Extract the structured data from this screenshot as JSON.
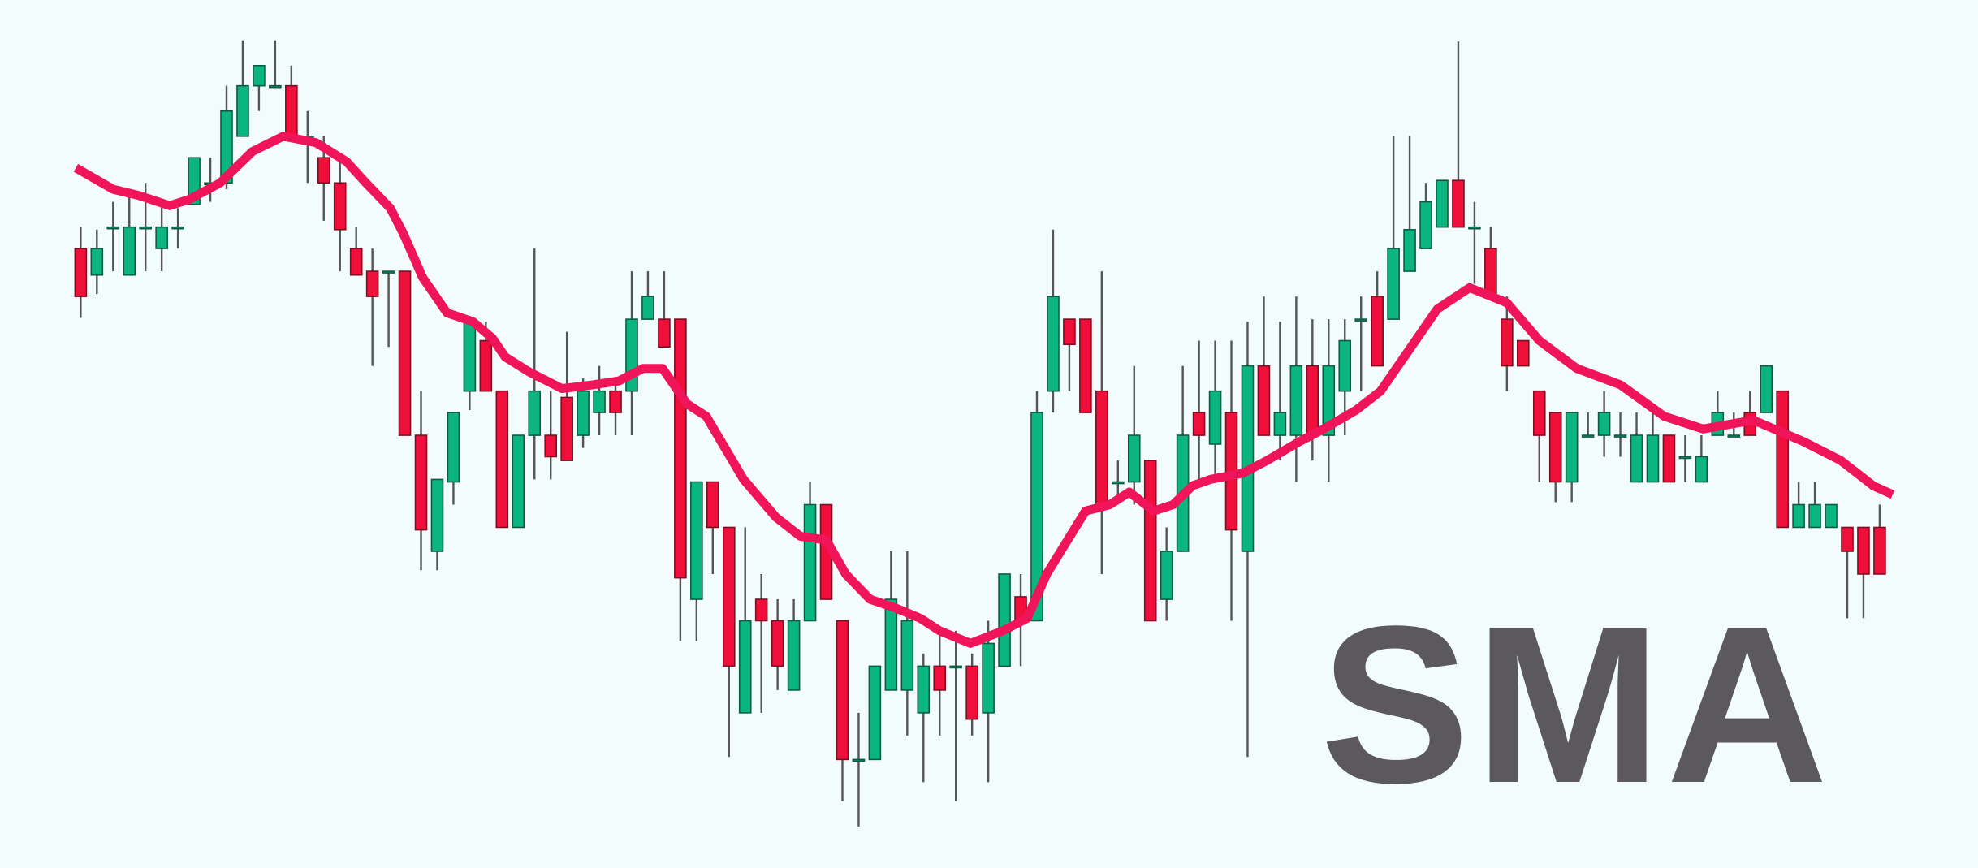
{
  "chart_data": {
    "type": "candlestick",
    "title": "SMA",
    "up_color": "#0bb57f",
    "up_border": "#0e5c40",
    "down_color": "#ef0f3a",
    "down_border": "#7a0f22",
    "wick_color": "#555555",
    "xlim": [
      0,
      114
    ],
    "ylim": [
      0,
      688
    ],
    "open": [
      491,
      470,
      508,
      470,
      508,
      491,
      508,
      526,
      543,
      543,
      580,
      620,
      620,
      620,
      580,
      563,
      543,
      491,
      473,
      473,
      473,
      343,
      251,
      306,
      378,
      418,
      378,
      270,
      343,
      343,
      373,
      343,
      361,
      378,
      378,
      435,
      435,
      435,
      213,
      306,
      270,
      123,
      213,
      196,
      141,
      196,
      288,
      196,
      86,
      86,
      141,
      141,
      123,
      160,
      160,
      160,
      123,
      160,
      215,
      196,
      378,
      435,
      435,
      378,
      306,
      306,
      323,
      213,
      251,
      361,
      336,
      361,
      251,
      398,
      343,
      343,
      398,
      343,
      378,
      435,
      453,
      435,
      473,
      491,
      508,
      545,
      508,
      491,
      435,
      418,
      378,
      361,
      306,
      343,
      343,
      343,
      306,
      306,
      343,
      326,
      306,
      343,
      343,
      361,
      361,
      378,
      270,
      270,
      270,
      270,
      270,
      270
    ],
    "high": [
      508,
      506,
      528,
      538,
      543,
      528,
      523,
      563,
      563,
      620,
      656,
      636,
      656,
      636,
      600,
      580,
      563,
      508,
      491,
      473,
      473,
      378,
      308,
      361,
      433,
      433,
      378,
      343,
      491,
      378,
      425,
      388,
      398,
      388,
      473,
      473,
      473,
      435,
      306,
      306,
      270,
      270,
      233,
      213,
      213,
      306,
      288,
      196,
      123,
      160,
      251,
      251,
      170,
      188,
      188,
      170,
      196,
      233,
      233,
      378,
      506,
      435,
      435,
      473,
      323,
      398,
      323,
      270,
      398,
      418,
      418,
      418,
      433,
      453,
      433,
      453,
      435,
      435,
      435,
      453,
      473,
      580,
      580,
      543,
      545,
      655,
      528,
      508,
      453,
      418,
      378,
      361,
      361,
      361,
      378,
      361,
      361,
      361,
      343,
      343,
      343,
      378,
      361,
      378,
      398,
      378,
      306,
      306,
      288,
      270,
      270,
      288
    ],
    "low": [
      436,
      455,
      473,
      470,
      473,
      473,
      491,
      526,
      528,
      538,
      580,
      600,
      620,
      580,
      543,
      513,
      473,
      470,
      398,
      413,
      343,
      236,
      236,
      288,
      363,
      378,
      270,
      270,
      308,
      308,
      323,
      333,
      343,
      343,
      343,
      435,
      413,
      180,
      180,
      233,
      88,
      123,
      123,
      141,
      141,
      196,
      213,
      53,
      33,
      86,
      141,
      105,
      68,
      105,
      53,
      105,
      68,
      160,
      160,
      196,
      361,
      378,
      361,
      233,
      288,
      288,
      196,
      196,
      251,
      308,
      306,
      196,
      88,
      343,
      323,
      306,
      323,
      306,
      343,
      378,
      398,
      435,
      473,
      491,
      508,
      508,
      463,
      453,
      378,
      398,
      306,
      290,
      290,
      343,
      326,
      326,
      306,
      306,
      306,
      306,
      306,
      343,
      343,
      343,
      361,
      270,
      270,
      270,
      270,
      198,
      198,
      233
    ],
    "close": [
      453,
      491,
      508,
      508,
      508,
      508,
      508,
      563,
      543,
      600,
      620,
      636,
      620,
      580,
      580,
      543,
      506,
      470,
      453,
      473,
      343,
      268,
      308,
      361,
      433,
      378,
      270,
      343,
      378,
      326,
      323,
      378,
      378,
      361,
      435,
      453,
      413,
      230,
      306,
      270,
      160,
      196,
      196,
      160,
      196,
      288,
      213,
      86,
      86,
      160,
      213,
      196,
      160,
      141,
      160,
      118,
      178,
      233,
      196,
      361,
      453,
      415,
      361,
      288,
      306,
      343,
      196,
      251,
      343,
      343,
      378,
      268,
      398,
      343,
      361,
      398,
      343,
      398,
      418,
      435,
      398,
      491,
      506,
      528,
      545,
      508,
      508,
      453,
      398,
      398,
      343,
      306,
      361,
      343,
      361,
      343,
      343,
      343,
      306,
      326,
      326,
      361,
      343,
      343,
      398,
      270,
      288,
      288,
      288,
      251,
      233,
      233
    ],
    "sma": {
      "color": "#f0145a",
      "x": [
        0.7,
        3.0,
        4.6,
        6.5,
        7.7,
        9.6,
        11.6,
        13.5,
        15.5,
        17.4,
        18.6,
        20.1,
        20.9,
        22.1,
        23.6,
        25.2,
        26.4,
        27.2,
        28.7,
        30.7,
        32.6,
        34.2,
        35.7,
        36.9,
        38.4,
        39.6,
        41.9,
        43.9,
        45.4,
        47.0,
        48.2,
        49.7,
        51.3,
        52.8,
        54.0,
        55.9,
        57.9,
        59.4,
        60.6,
        63.0,
        64.5,
        65.7,
        67.2,
        68.4,
        69.6,
        70.7,
        72.7,
        74.2,
        76.2,
        77.7,
        79.7,
        81.2,
        84.7,
        86.7,
        89.0,
        91.0,
        93.3,
        96.0,
        98.7,
        101.1,
        104.2,
        107.3,
        109.6,
        111.6,
        112.8
      ],
      "values": [
        555,
        538,
        533,
        525,
        530,
        543,
        568,
        580,
        575,
        560,
        543,
        523,
        503,
        468,
        440,
        433,
        420,
        405,
        393,
        380,
        383,
        386,
        396,
        396,
        368,
        358,
        308,
        278,
        263,
        260,
        233,
        213,
        206,
        198,
        188,
        178,
        188,
        198,
        233,
        283,
        288,
        298,
        283,
        288,
        303,
        308,
        313,
        323,
        338,
        348,
        363,
        378,
        443,
        460,
        448,
        418,
        396,
        383,
        358,
        348,
        355,
        338,
        323,
        303,
        296
      ]
    }
  }
}
